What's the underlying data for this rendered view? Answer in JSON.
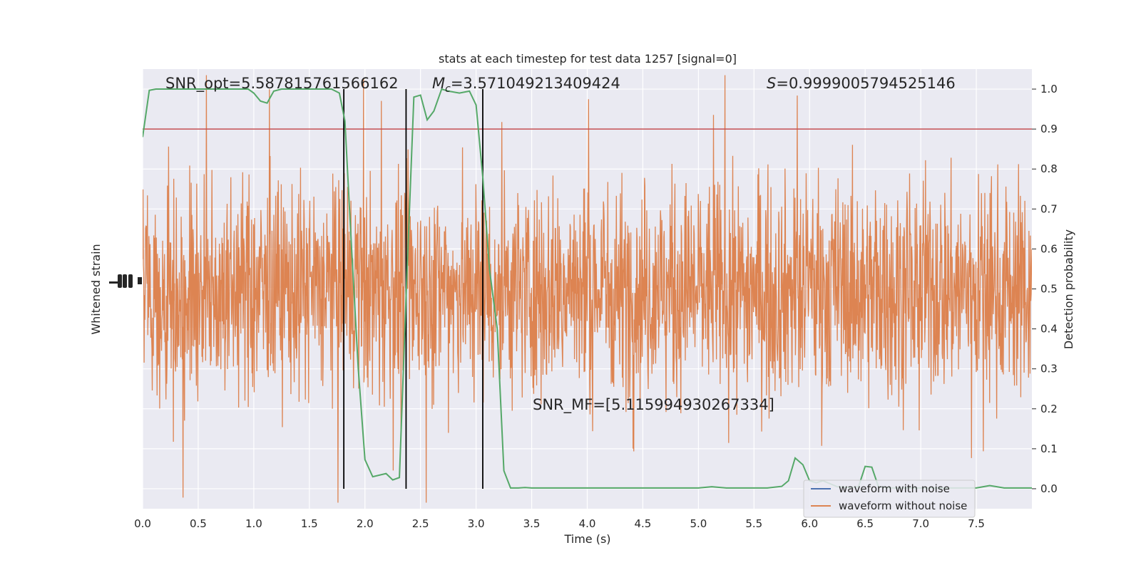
{
  "chart_data": {
    "type": "line",
    "title": "stats at each timestep for test data 1257 [signal=0]",
    "xlabel": "Time (s)",
    "ylabel_left": "Whitened strain",
    "ylabel_right": "Detection probability",
    "xlim": [
      0.0,
      8.0
    ],
    "ylim_right": [
      -0.05,
      1.05
    ],
    "xticks": [
      "0.0",
      "0.5",
      "1.0",
      "1.5",
      "2.0",
      "2.5",
      "3.0",
      "3.5",
      "4.0",
      "4.5",
      "5.0",
      "5.5",
      "6.0",
      "6.5",
      "7.0",
      "7.5"
    ],
    "xtick_values": [
      0.0,
      0.5,
      1.0,
      1.5,
      2.0,
      2.5,
      3.0,
      3.5,
      4.0,
      4.5,
      5.0,
      5.5,
      6.0,
      6.5,
      7.0,
      7.5
    ],
    "yticks_right": [
      "0.0",
      "0.1",
      "0.2",
      "0.3",
      "0.4",
      "0.5",
      "0.6",
      "0.7",
      "0.8",
      "0.9",
      "1.0"
    ],
    "ytick_values_right": [
      0.0,
      0.1,
      0.2,
      0.3,
      0.4,
      0.5,
      0.6,
      0.7,
      0.8,
      0.9,
      1.0
    ],
    "grid": true,
    "legend_position": "lower-right",
    "annotations": {
      "snr_opt": "SNR_opt=5.587815761566162",
      "mc_symbol": "M",
      "mc_sub": "c",
      "mc_value": "=3.571049213409424",
      "s_symbol": "S",
      "s_value": "=0.9999005794525146",
      "snr_mf": "SNR_MF=[5.115994930267334]"
    },
    "threshold": 0.9,
    "vertical_markers": [
      1.81,
      2.37,
      3.06
    ],
    "series": [
      {
        "name": "waveform with noise",
        "color": "#4c72b0",
        "kind": "strain"
      },
      {
        "name": "waveform without noise",
        "color": "#dd8452",
        "kind": "strain"
      },
      {
        "name": "",
        "color": "#55a868",
        "kind": "probability",
        "x": [
          0.0,
          0.06,
          0.12,
          0.18,
          0.25,
          0.5,
          0.75,
          0.95,
          1.0,
          1.06,
          1.12,
          1.18,
          1.25,
          1.5,
          1.6,
          1.7,
          1.77,
          1.82,
          1.88,
          1.94,
          2.0,
          2.07,
          2.19,
          2.25,
          2.31,
          2.37,
          2.44,
          2.5,
          2.56,
          2.62,
          2.69,
          2.75,
          2.85,
          2.94,
          3.0,
          3.06,
          3.12,
          3.19,
          3.25,
          3.31,
          3.38,
          3.44,
          3.5,
          3.75,
          4.0,
          4.25,
          4.5,
          4.75,
          5.0,
          5.12,
          5.25,
          5.5,
          5.62,
          5.75,
          5.81,
          5.87,
          5.94,
          6.0,
          6.06,
          6.12,
          6.25,
          6.37,
          6.44,
          6.5,
          6.56,
          6.62,
          6.75,
          7.0,
          7.25,
          7.5,
          7.62,
          7.75,
          8.0
        ],
        "y": [
          0.88,
          0.997,
          1.0,
          1.0,
          1.0,
          1.0,
          1.0,
          1.0,
          0.99,
          0.97,
          0.965,
          0.995,
          1.0,
          1.0,
          1.0,
          1.0,
          0.99,
          0.92,
          0.6,
          0.3,
          0.073,
          0.03,
          0.038,
          0.022,
          0.028,
          0.48,
          0.98,
          0.985,
          0.923,
          0.945,
          1.0,
          0.995,
          0.99,
          0.995,
          0.96,
          0.78,
          0.55,
          0.4,
          0.045,
          0.002,
          0.002,
          0.003,
          0.002,
          0.002,
          0.002,
          0.002,
          0.002,
          0.002,
          0.002,
          0.005,
          0.002,
          0.002,
          0.002,
          0.006,
          0.02,
          0.077,
          0.06,
          0.02,
          0.015,
          0.02,
          0.005,
          0.003,
          0.005,
          0.056,
          0.054,
          0.005,
          0.002,
          0.002,
          0.002,
          0.002,
          0.008,
          0.002,
          0.002
        ]
      },
      {
        "name": "",
        "color": "#c44e52",
        "kind": "threshold"
      }
    ]
  }
}
